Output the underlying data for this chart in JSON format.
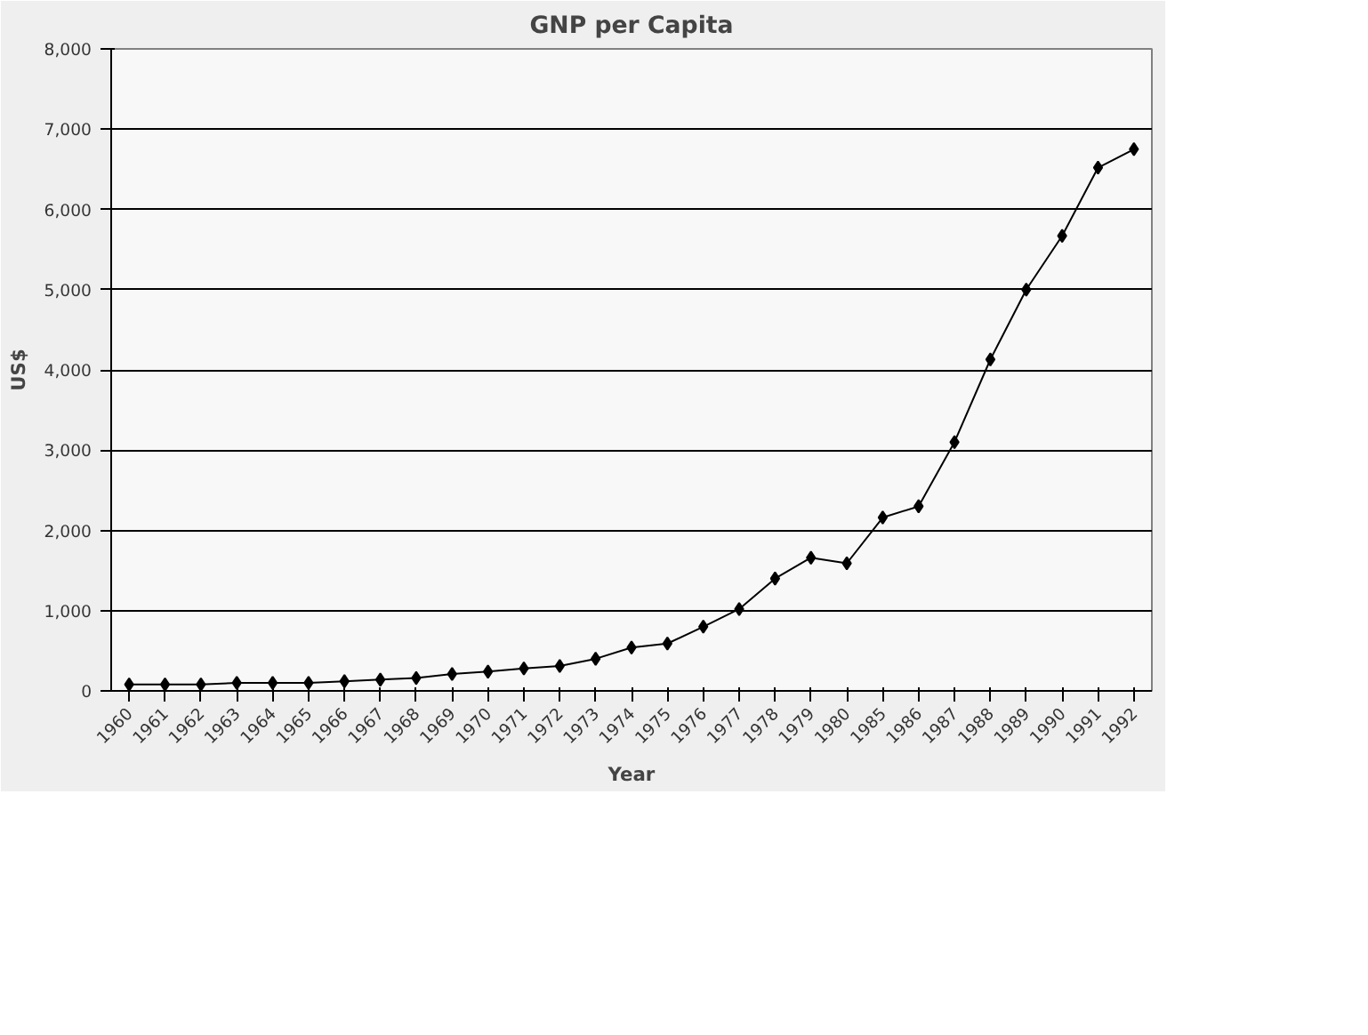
{
  "chart_data": {
    "type": "line",
    "title": "GNP per Capita",
    "xlabel": "Year",
    "ylabel": "US$",
    "categories": [
      "1960",
      "1961",
      "1962",
      "1963",
      "1964",
      "1965",
      "1966",
      "1967",
      "1968",
      "1969",
      "1970",
      "1971",
      "1972",
      "1973",
      "1974",
      "1975",
      "1976",
      "1977",
      "1978",
      "1979",
      "1980",
      "1985",
      "1986",
      "1987",
      "1988",
      "1989",
      "1990",
      "1991",
      "1992"
    ],
    "series": [
      {
        "color": "#000000",
        "values": [
          80,
          80,
          80,
          100,
          100,
          100,
          120,
          140,
          160,
          210,
          240,
          280,
          310,
          400,
          540,
          590,
          800,
          1020,
          1400,
          1660,
          1590,
          2160,
          2300,
          3100,
          4130,
          5000,
          5670,
          6520,
          6750
        ]
      }
    ],
    "ylim": [
      0,
      8000
    ],
    "yticks": [
      0,
      {
        "value": 1000,
        "label": "1,000"
      },
      {
        "value": 2000,
        "label": "2,000"
      },
      {
        "value": 3000,
        "label": "3,000"
      },
      {
        "value": 4000,
        "label": "4,000"
      },
      {
        "value": 5000,
        "label": "5,000"
      },
      {
        "value": 6000,
        "label": "6,000"
      },
      {
        "value": 7000,
        "label": "7,000"
      },
      {
        "value": 8000,
        "label": "8,000"
      }
    ],
    "grid": "y",
    "marker": "diamond",
    "line_style": "solid"
  }
}
